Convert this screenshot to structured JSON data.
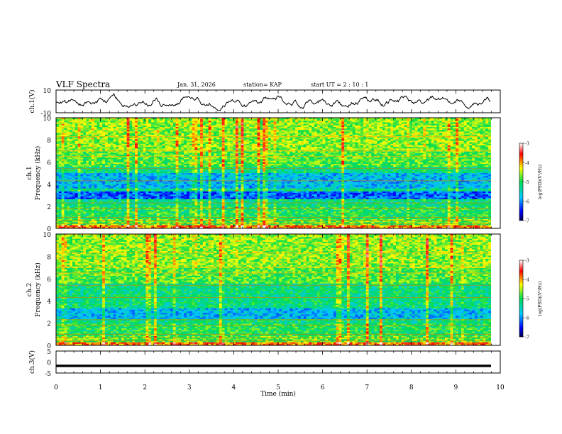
{
  "header": {
    "title": "VLF Spectra",
    "date": "Jan. 31, 2026",
    "station": "station= KAP",
    "start_time": "start  UT =  2 : 10 : 1"
  },
  "chart_data": [
    {
      "type": "line",
      "name": "ch1-waveform",
      "ylabel": "ch.1(V)",
      "ylim": [
        -10,
        10
      ],
      "yticks": [
        "10",
        "-10"
      ],
      "xlim": [
        0,
        10
      ]
    },
    {
      "type": "heatmap",
      "name": "ch1-spectrogram",
      "ylabel": "ch.1 Frequency (kHz)",
      "ylim": [
        0,
        10
      ],
      "yticks": [
        "0",
        "2",
        "4",
        "6",
        "8",
        "10"
      ],
      "colorbar": {
        "label": "log(PSD)(V²/Hz)",
        "range": [
          -7,
          -3
        ],
        "ticks": [
          "-3",
          "-4",
          "-5",
          "-6",
          "-7"
        ]
      }
    },
    {
      "type": "heatmap",
      "name": "ch2-spectrogram",
      "ylabel": "ch.2 Frequency (kHz)",
      "ylim": [
        0,
        10
      ],
      "yticks": [
        "0",
        "2",
        "4",
        "6",
        "8",
        "10"
      ],
      "colorbar": {
        "label": "log(PSD)(V²/Hz)",
        "range": [
          -7,
          -3
        ],
        "ticks": [
          "-3",
          "-4",
          "-5",
          "-6",
          "-7"
        ]
      }
    },
    {
      "type": "line",
      "name": "ch3-waveform",
      "ylabel": "ch.3(V)",
      "ylim": [
        -5,
        5
      ],
      "yticks": [
        "5",
        "0",
        "-5"
      ],
      "xlim": [
        0,
        10
      ]
    }
  ],
  "x_axis": {
    "label": "Time  (min)",
    "ticks": [
      "0",
      "1",
      "2",
      "3",
      "4",
      "5",
      "6",
      "7",
      "8",
      "9",
      "10"
    ]
  }
}
